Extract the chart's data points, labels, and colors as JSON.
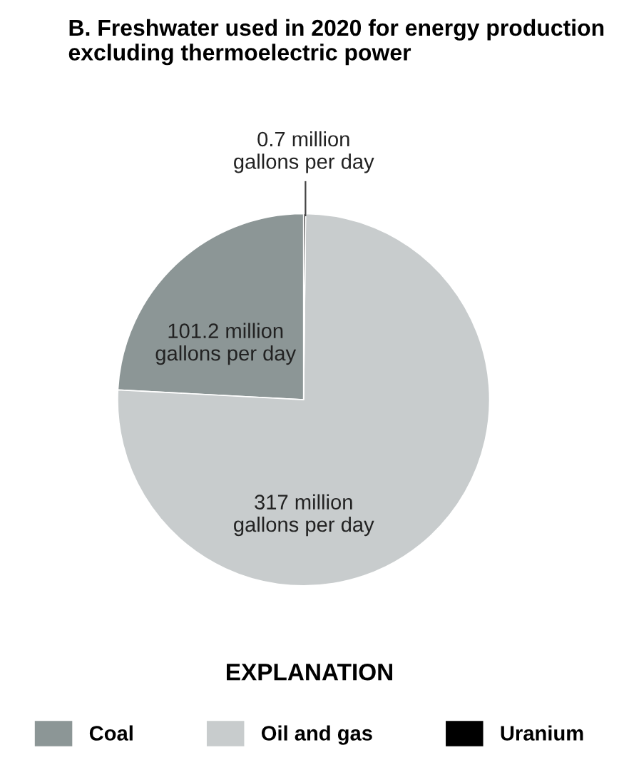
{
  "chart_data": {
    "type": "pie",
    "title": "B. Freshwater used in 2020 for energy production\nexcluding thermoelectric power",
    "categories": [
      "Coal",
      "Oil and gas",
      "Uranium"
    ],
    "values": [
      101.2,
      317,
      0.7
    ],
    "colors": [
      "#8c9696",
      "#c8cccd",
      "#000000"
    ],
    "value_labels": [
      "101.2 million\ngallons per day",
      "317 million\ngallons per day",
      "0.7 million\ngallons per day"
    ],
    "legend_title": "EXPLANATION",
    "legend": "bottom"
  }
}
